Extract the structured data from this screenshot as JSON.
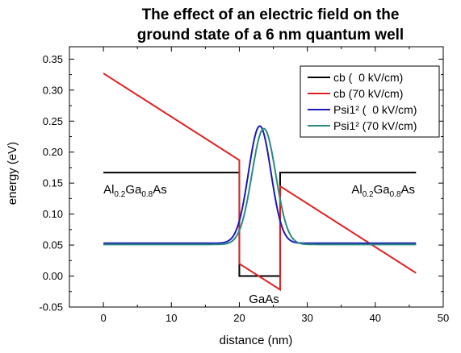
{
  "chart_data": {
    "type": "line",
    "title_line1": "The effect of an electric field on the",
    "title_line2": "ground state of a 6 nm quantum well",
    "xlabel": "distance (nm)",
    "ylabel": "energy (eV)",
    "xlim": [
      -5,
      50
    ],
    "ylim": [
      -0.05,
      0.37
    ],
    "x_ticks": [
      0,
      10,
      20,
      30,
      40,
      50
    ],
    "y_ticks": [
      -0.05,
      0.0,
      0.05,
      0.1,
      0.15,
      0.2,
      0.25,
      0.3,
      0.35
    ],
    "y_tick_labels": [
      "-0.05",
      "0.00",
      "0.05",
      "0.10",
      "0.15",
      "0.20",
      "0.25",
      "0.30",
      "0.35"
    ],
    "grid": false,
    "legend_position": "top-right",
    "series": [
      {
        "name": "cb (  0 kV/cm)",
        "color": "#000000",
        "points": [
          [
            0,
            0.167
          ],
          [
            20,
            0.167
          ],
          [
            20,
            0.0
          ],
          [
            26,
            0.0
          ],
          [
            26,
            0.167
          ],
          [
            46,
            0.167
          ]
        ]
      },
      {
        "name": "cb (70 kV/cm)",
        "color": "#e02020",
        "points": [
          [
            0,
            0.327
          ],
          [
            20,
            0.187
          ],
          [
            20,
            0.02
          ],
          [
            26,
            -0.022
          ],
          [
            26,
            0.145
          ],
          [
            46,
            0.005
          ]
        ]
      },
      {
        "name": "Psi1² (  0 kV/cm)",
        "color": "#1a1ab8",
        "baseline": 0.053,
        "peak": 0.242,
        "center": 23.0,
        "sigma": 1.65,
        "x_range": [
          0,
          46
        ]
      },
      {
        "name": "Psi1² (70 kV/cm)",
        "color": "#2a8a80",
        "baseline": 0.051,
        "peak": 0.238,
        "center": 23.6,
        "sigma": 1.75,
        "x_range": [
          0,
          46
        ]
      }
    ],
    "annotations": [
      {
        "base": "Al",
        "sub1": "0.2",
        "mid": "Ga",
        "sub2": "0.8",
        "tail": "As",
        "x": 0,
        "y": 0.14
      },
      {
        "base": "Al",
        "sub1": "0.2",
        "mid": "Ga",
        "sub2": "0.8",
        "tail": "As",
        "x": 36.5,
        "y": 0.14
      },
      {
        "text": "GaAs",
        "x": 21.4,
        "y": -0.037
      }
    ]
  }
}
